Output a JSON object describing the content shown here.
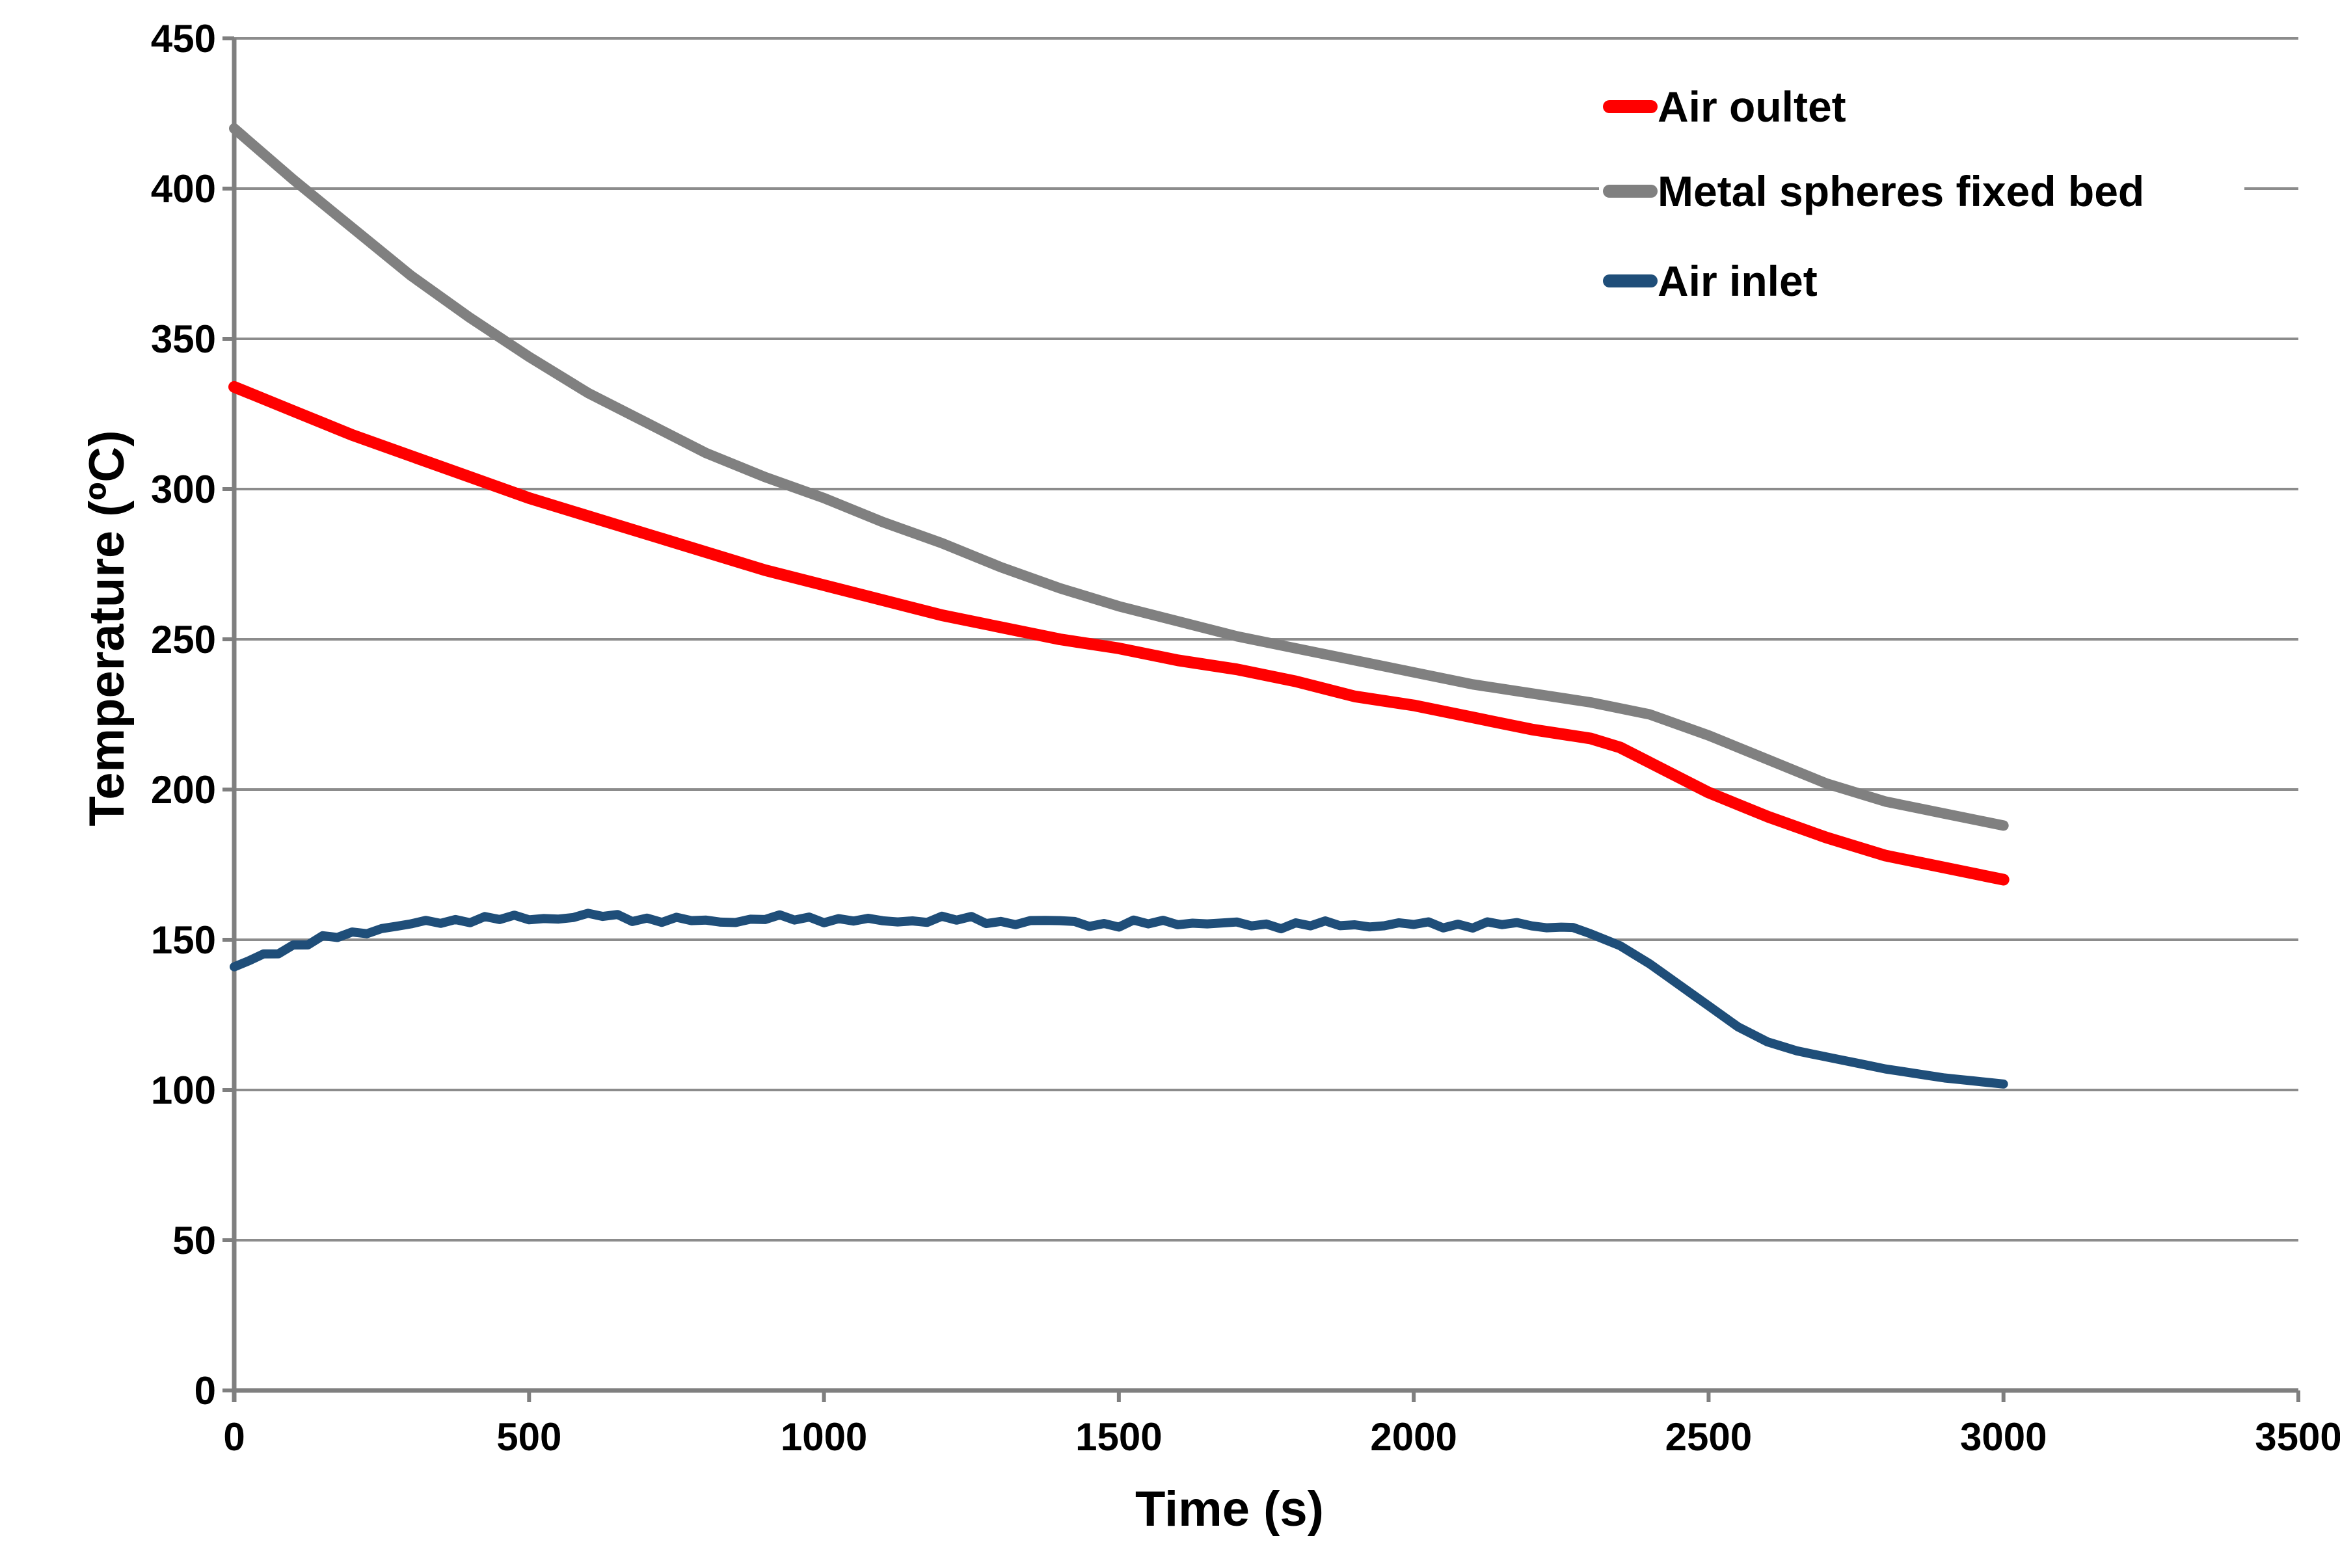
{
  "chart_data": {
    "type": "line",
    "title": "",
    "xlabel": "Time (s)",
    "ylabel": "Temperature (ºC)",
    "xlim": [
      0,
      3500
    ],
    "ylim": [
      0,
      450
    ],
    "xticks": [
      "0",
      "500",
      "1000",
      "1500",
      "2000",
      "2500",
      "3000",
      "3500"
    ],
    "yticks": [
      "0",
      "50",
      "100",
      "150",
      "200",
      "250",
      "300",
      "350",
      "400",
      "450"
    ],
    "grid": "horizontal-only",
    "grid_color": "#8c8c8c",
    "axis_color": "#7f7f7f",
    "text_color": "#000000",
    "background_color": "#ffffff",
    "legend_position": "top-right",
    "series": [
      {
        "name": "Air oultet",
        "color": "#ff0000",
        "stroke_width": 18,
        "points": [
          [
            0,
            334
          ],
          [
            100,
            326
          ],
          [
            200,
            318
          ],
          [
            300,
            311
          ],
          [
            400,
            304
          ],
          [
            500,
            297
          ],
          [
            600,
            291
          ],
          [
            700,
            285
          ],
          [
            800,
            279
          ],
          [
            900,
            273
          ],
          [
            1000,
            268
          ],
          [
            1100,
            263
          ],
          [
            1200,
            258
          ],
          [
            1300,
            254
          ],
          [
            1400,
            250
          ],
          [
            1500,
            247
          ],
          [
            1600,
            243
          ],
          [
            1700,
            240
          ],
          [
            1800,
            236
          ],
          [
            1900,
            231
          ],
          [
            2000,
            228
          ],
          [
            2100,
            224
          ],
          [
            2200,
            220
          ],
          [
            2300,
            217
          ],
          [
            2350,
            214
          ],
          [
            2400,
            209
          ],
          [
            2500,
            199
          ],
          [
            2600,
            191
          ],
          [
            2700,
            184
          ],
          [
            2800,
            178
          ],
          [
            2900,
            174
          ],
          [
            3000,
            170
          ]
        ]
      },
      {
        "name": "Metal spheres fixed bed",
        "color": "#808080",
        "stroke_width": 16,
        "points": [
          [
            0,
            420
          ],
          [
            100,
            403
          ],
          [
            200,
            387
          ],
          [
            300,
            371
          ],
          [
            400,
            357
          ],
          [
            500,
            344
          ],
          [
            600,
            332
          ],
          [
            700,
            322
          ],
          [
            800,
            312
          ],
          [
            900,
            304
          ],
          [
            1000,
            297
          ],
          [
            1100,
            289
          ],
          [
            1200,
            282
          ],
          [
            1300,
            274
          ],
          [
            1400,
            267
          ],
          [
            1500,
            261
          ],
          [
            1600,
            256
          ],
          [
            1700,
            251
          ],
          [
            1800,
            247
          ],
          [
            1900,
            243
          ],
          [
            2000,
            239
          ],
          [
            2100,
            235
          ],
          [
            2200,
            232
          ],
          [
            2300,
            229
          ],
          [
            2400,
            225
          ],
          [
            2500,
            218
          ],
          [
            2600,
            210
          ],
          [
            2700,
            202
          ],
          [
            2800,
            196
          ],
          [
            2900,
            192
          ],
          [
            3000,
            188
          ]
        ]
      },
      {
        "name": "Air inlet",
        "color": "#1f4e79",
        "stroke_width": 14,
        "noise": true,
        "points": [
          [
            0,
            141
          ],
          [
            50,
            145
          ],
          [
            100,
            148
          ],
          [
            150,
            150
          ],
          [
            200,
            152
          ],
          [
            250,
            154
          ],
          [
            300,
            155
          ],
          [
            350,
            156
          ],
          [
            400,
            157
          ],
          [
            500,
            157
          ],
          [
            600,
            158
          ],
          [
            700,
            157
          ],
          [
            800,
            156
          ],
          [
            900,
            157
          ],
          [
            1000,
            157
          ],
          [
            1100,
            156
          ],
          [
            1200,
            157
          ],
          [
            1300,
            156
          ],
          [
            1400,
            156
          ],
          [
            1500,
            155
          ],
          [
            1600,
            156
          ],
          [
            1700,
            155
          ],
          [
            1800,
            155
          ],
          [
            1900,
            155
          ],
          [
            2000,
            155
          ],
          [
            2100,
            155
          ],
          [
            2200,
            155
          ],
          [
            2270,
            154
          ],
          [
            2300,
            152
          ],
          [
            2350,
            148
          ],
          [
            2400,
            142
          ],
          [
            2450,
            135
          ],
          [
            2500,
            128
          ],
          [
            2550,
            121
          ],
          [
            2600,
            116
          ],
          [
            2650,
            113
          ],
          [
            2700,
            111
          ],
          [
            2750,
            109
          ],
          [
            2800,
            107
          ],
          [
            2900,
            104
          ],
          [
            3000,
            102
          ]
        ]
      }
    ]
  }
}
